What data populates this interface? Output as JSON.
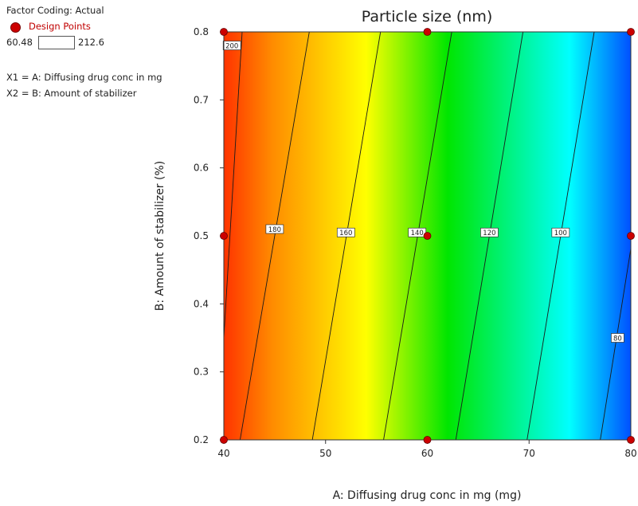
{
  "legend": {
    "factor_coding": "Factor Coding: Actual",
    "design_points": "Design Points",
    "range_low": "60.48",
    "range_high": "212.6",
    "x1": "X1 = A: Diffusing drug conc in mg",
    "x2": "X2 = B: Amount of stabilizer",
    "dot_color": "#cc0000"
  },
  "chart_data": {
    "type": "contour",
    "title": "Particle size (nm)",
    "xlabel": "A: Diffusing drug conc in mg (mg)",
    "ylabel": "B: Amount of stabilizer  (%)",
    "xlim": [
      40,
      80
    ],
    "ylim": [
      0.2,
      0.8
    ],
    "x_ticks": [
      "40",
      "50",
      "60",
      "70",
      "80"
    ],
    "y_ticks": [
      "0.2",
      "0.3",
      "0.4",
      "0.5",
      "0.6",
      "0.7",
      "0.8"
    ],
    "value_range": [
      60.48,
      212.6
    ],
    "color_scale": [
      "#0050ff",
      "#00ffff",
      "#00e600",
      "#ffff00",
      "#ff8c00",
      "#ff3300"
    ],
    "design_points": [
      {
        "x": 40,
        "y": 0.2
      },
      {
        "x": 40,
        "y": 0.5
      },
      {
        "x": 40,
        "y": 0.8
      },
      {
        "x": 60,
        "y": 0.2
      },
      {
        "x": 60,
        "y": 0.5
      },
      {
        "x": 60,
        "y": 0.8
      },
      {
        "x": 80,
        "y": 0.2
      },
      {
        "x": 80,
        "y": 0.5
      },
      {
        "x": 80,
        "y": 0.8
      }
    ],
    "contours": [
      {
        "level": 200,
        "label": "200",
        "x_at_ymin": 39.4,
        "x_at_ymax": 41.8,
        "label_x": 40.8,
        "label_y": 0.78
      },
      {
        "level": 180,
        "label": "180",
        "x_at_ymin": 41.6,
        "x_at_ymax": 48.4,
        "label_x": 45.0,
        "label_y": 0.51
      },
      {
        "level": 160,
        "label": "160",
        "x_at_ymin": 48.7,
        "x_at_ymax": 55.4,
        "label_x": 52.0,
        "label_y": 0.505
      },
      {
        "level": 140,
        "label": "140",
        "x_at_ymin": 55.7,
        "x_at_ymax": 62.4,
        "label_x": 59.0,
        "label_y": 0.505
      },
      {
        "level": 120,
        "label": "120",
        "x_at_ymin": 62.8,
        "x_at_ymax": 69.4,
        "label_x": 66.1,
        "label_y": 0.505
      },
      {
        "level": 100,
        "label": "100",
        "x_at_ymin": 69.8,
        "x_at_ymax": 76.4,
        "label_x": 73.1,
        "label_y": 0.505
      },
      {
        "level": 80,
        "label": "80",
        "x_at_ymin": 77.0,
        "x_at_ymax": 83.4,
        "label_x": 78.7,
        "label_y": 0.35
      }
    ],
    "grid": false
  }
}
